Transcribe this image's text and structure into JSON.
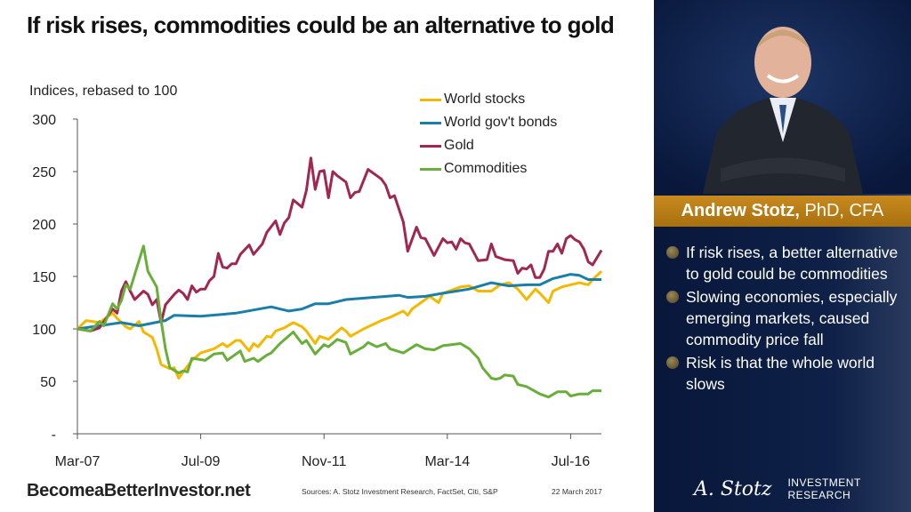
{
  "title": "If risk rises, commodities could be an alternative to gold",
  "footer": {
    "site": "BecomeaBetterInvestor.net",
    "sources": "Sources: A. Stotz Investment Research, FactSet, Citi, S&P",
    "date": "22 March 2017",
    "logo_signature": "A. Stotz",
    "logo_line1": "INVESTMENT",
    "logo_line2": "RESEARCH"
  },
  "panel": {
    "name": "Andrew Stotz,",
    "credentials": " PhD, CFA",
    "bullets": [
      "If risk rises, a better alternative to gold could be commodities",
      "Slowing economies, especially emerging markets, caused commodity price fall",
      "Risk is that the whole world slows"
    ],
    "banner_color": "#c08419"
  },
  "chart_data": {
    "type": "line",
    "title": "If risk rises, commodities could be an alternative to gold",
    "ylabel": "Indices, rebased to 100",
    "xlabel": "",
    "ylim": [
      0,
      300
    ],
    "yticks": [
      0,
      50,
      100,
      150,
      200,
      250,
      300
    ],
    "ytick_labels": [
      "-",
      "50",
      "100",
      "150",
      "200",
      "250",
      "300"
    ],
    "xlim": [
      "2007-03",
      "2017-02"
    ],
    "xticks": [
      "2007-03",
      "2009-07",
      "2011-11",
      "2014-03",
      "2016-07"
    ],
    "xtick_labels": [
      "Mar-07",
      "Jul-09",
      "Nov-11",
      "Mar-14",
      "Jul-16"
    ],
    "grid": false,
    "legend": "top-right",
    "series": [
      {
        "name": "World stocks",
        "color": "#f5b800",
        "points": [
          [
            "2007-03",
            100
          ],
          [
            "2007-05",
            108
          ],
          [
            "2007-08",
            106
          ],
          [
            "2007-11",
            115
          ],
          [
            "2007-12",
            110
          ],
          [
            "2008-02",
            102
          ],
          [
            "2008-03",
            100
          ],
          [
            "2008-05",
            107
          ],
          [
            "2008-06",
            97
          ],
          [
            "2008-08",
            92
          ],
          [
            "2008-09",
            81
          ],
          [
            "2008-10",
            66
          ],
          [
            "2008-12",
            62
          ],
          [
            "2009-01",
            63
          ],
          [
            "2009-02",
            53
          ],
          [
            "2009-03",
            59
          ],
          [
            "2009-05",
            70
          ],
          [
            "2009-07",
            77
          ],
          [
            "2009-10",
            81
          ],
          [
            "2009-12",
            86
          ],
          [
            "2010-01",
            83
          ],
          [
            "2010-03",
            89
          ],
          [
            "2010-04",
            89
          ],
          [
            "2010-06",
            79
          ],
          [
            "2010-07",
            86
          ],
          [
            "2010-08",
            83
          ],
          [
            "2010-10",
            93
          ],
          [
            "2010-11",
            92
          ],
          [
            "2010-12",
            98
          ],
          [
            "2011-02",
            101
          ],
          [
            "2011-04",
            106
          ],
          [
            "2011-06",
            102
          ],
          [
            "2011-07",
            98
          ],
          [
            "2011-09",
            86
          ],
          [
            "2011-10",
            93
          ],
          [
            "2011-12",
            90
          ],
          [
            "2012-03",
            101
          ],
          [
            "2012-04",
            98
          ],
          [
            "2012-05",
            93
          ],
          [
            "2012-08",
            100
          ],
          [
            "2012-10",
            104
          ],
          [
            "2012-12",
            108
          ],
          [
            "2013-02",
            111
          ],
          [
            "2013-05",
            117
          ],
          [
            "2013-06",
            113
          ],
          [
            "2013-07",
            119
          ],
          [
            "2013-09",
            125
          ],
          [
            "2013-11",
            131
          ],
          [
            "2014-01",
            125
          ],
          [
            "2014-02",
            134
          ],
          [
            "2014-06",
            140
          ],
          [
            "2014-08",
            141
          ],
          [
            "2014-10",
            136
          ],
          [
            "2015-01",
            136
          ],
          [
            "2015-03",
            142
          ],
          [
            "2015-05",
            144
          ],
          [
            "2015-07",
            138
          ],
          [
            "2015-09",
            128
          ],
          [
            "2015-11",
            138
          ],
          [
            "2015-12",
            134
          ],
          [
            "2016-02",
            125
          ],
          [
            "2016-03",
            136
          ],
          [
            "2016-05",
            140
          ],
          [
            "2016-07",
            142
          ],
          [
            "2016-09",
            144
          ],
          [
            "2016-11",
            142
          ],
          [
            "2016-12",
            147
          ],
          [
            "2017-02",
            155
          ]
        ]
      },
      {
        "name": "World gov't bonds",
        "color": "#1a7fa8",
        "points": [
          [
            "2007-03",
            100
          ],
          [
            "2008-01",
            106
          ],
          [
            "2008-05",
            103
          ],
          [
            "2008-11",
            108
          ],
          [
            "2009-01",
            113
          ],
          [
            "2009-07",
            112
          ],
          [
            "2010-03",
            115
          ],
          [
            "2010-11",
            121
          ],
          [
            "2011-03",
            117
          ],
          [
            "2011-06",
            119
          ],
          [
            "2011-09",
            124
          ],
          [
            "2011-12",
            124
          ],
          [
            "2012-04",
            128
          ],
          [
            "2012-10",
            130
          ],
          [
            "2013-04",
            132
          ],
          [
            "2013-06",
            130
          ],
          [
            "2013-10",
            131
          ],
          [
            "2014-02",
            134
          ],
          [
            "2014-08",
            138
          ],
          [
            "2015-01",
            144
          ],
          [
            "2015-05",
            141
          ],
          [
            "2015-09",
            142
          ],
          [
            "2015-12",
            142
          ],
          [
            "2016-03",
            148
          ],
          [
            "2016-07",
            152
          ],
          [
            "2016-09",
            151
          ],
          [
            "2016-11",
            147
          ],
          [
            "2017-02",
            147
          ]
        ]
      },
      {
        "name": "Gold",
        "color": "#a0284e",
        "points": [
          [
            "2007-03",
            100
          ],
          [
            "2007-06",
            98
          ],
          [
            "2007-08",
            101
          ],
          [
            "2007-11",
            119
          ],
          [
            "2007-12",
            115
          ],
          [
            "2008-01",
            136
          ],
          [
            "2008-02",
            145
          ],
          [
            "2008-03",
            136
          ],
          [
            "2008-04",
            128
          ],
          [
            "2008-06",
            136
          ],
          [
            "2008-07",
            133
          ],
          [
            "2008-08",
            123
          ],
          [
            "2008-09",
            128
          ],
          [
            "2008-10",
            106
          ],
          [
            "2008-11",
            123
          ],
          [
            "2009-01",
            133
          ],
          [
            "2009-02",
            137
          ],
          [
            "2009-03",
            134
          ],
          [
            "2009-04",
            128
          ],
          [
            "2009-05",
            141
          ],
          [
            "2009-06",
            135
          ],
          [
            "2009-07",
            138
          ],
          [
            "2009-08",
            138
          ],
          [
            "2009-09",
            146
          ],
          [
            "2009-10",
            150
          ],
          [
            "2009-11",
            172
          ],
          [
            "2009-12",
            159
          ],
          [
            "2010-01",
            158
          ],
          [
            "2010-02",
            162
          ],
          [
            "2010-03",
            162
          ],
          [
            "2010-04",
            171
          ],
          [
            "2010-06",
            180
          ],
          [
            "2010-07",
            171
          ],
          [
            "2010-09",
            181
          ],
          [
            "2010-10",
            192
          ],
          [
            "2010-12",
            203
          ],
          [
            "2011-01",
            190
          ],
          [
            "2011-02",
            201
          ],
          [
            "2011-03",
            206
          ],
          [
            "2011-04",
            223
          ],
          [
            "2011-06",
            216
          ],
          [
            "2011-07",
            232
          ],
          [
            "2011-08",
            263
          ],
          [
            "2011-09",
            233
          ],
          [
            "2011-10",
            250
          ],
          [
            "2011-11",
            251
          ],
          [
            "2011-12",
            225
          ],
          [
            "2012-01",
            250
          ],
          [
            "2012-02",
            246
          ],
          [
            "2012-04",
            240
          ],
          [
            "2012-05",
            225
          ],
          [
            "2012-06",
            230
          ],
          [
            "2012-07",
            231
          ],
          [
            "2012-09",
            252
          ],
          [
            "2012-11",
            246
          ],
          [
            "2012-12",
            243
          ],
          [
            "2013-01",
            237
          ],
          [
            "2013-02",
            225
          ],
          [
            "2013-03",
            227
          ],
          [
            "2013-05",
            202
          ],
          [
            "2013-06",
            174
          ],
          [
            "2013-08",
            197
          ],
          [
            "2013-09",
            187
          ],
          [
            "2013-10",
            186
          ],
          [
            "2013-12",
            170
          ],
          [
            "2014-02",
            186
          ],
          [
            "2014-03",
            182
          ],
          [
            "2014-04",
            183
          ],
          [
            "2014-05",
            176
          ],
          [
            "2014-06",
            186
          ],
          [
            "2014-07",
            182
          ],
          [
            "2014-08",
            181
          ],
          [
            "2014-10",
            165
          ],
          [
            "2014-12",
            166
          ],
          [
            "2015-01",
            181
          ],
          [
            "2015-02",
            169
          ],
          [
            "2015-04",
            166
          ],
          [
            "2015-06",
            165
          ],
          [
            "2015-07",
            153
          ],
          [
            "2015-08",
            158
          ],
          [
            "2015-09",
            157
          ],
          [
            "2015-10",
            161
          ],
          [
            "2015-11",
            149
          ],
          [
            "2015-12",
            149
          ],
          [
            "2016-01",
            157
          ],
          [
            "2016-02",
            174
          ],
          [
            "2016-03",
            174
          ],
          [
            "2016-04",
            181
          ],
          [
            "2016-05",
            172
          ],
          [
            "2016-06",
            186
          ],
          [
            "2016-07",
            189
          ],
          [
            "2016-08",
            185
          ],
          [
            "2016-09",
            183
          ],
          [
            "2016-10",
            176
          ],
          [
            "2016-11",
            164
          ],
          [
            "2016-12",
            161
          ],
          [
            "2017-02",
            175
          ]
        ]
      },
      {
        "name": "Commodities",
        "color": "#6aae3a",
        "points": [
          [
            "2007-03",
            100
          ],
          [
            "2007-06",
            98
          ],
          [
            "2007-08",
            107
          ],
          [
            "2007-09",
            103
          ],
          [
            "2007-11",
            124
          ],
          [
            "2007-12",
            119
          ],
          [
            "2008-01",
            127
          ],
          [
            "2008-02",
            142
          ],
          [
            "2008-03",
            138
          ],
          [
            "2008-06",
            179
          ],
          [
            "2008-07",
            155
          ],
          [
            "2008-09",
            140
          ],
          [
            "2008-10",
            108
          ],
          [
            "2008-11",
            81
          ],
          [
            "2008-12",
            63
          ],
          [
            "2009-02",
            58
          ],
          [
            "2009-03",
            60
          ],
          [
            "2009-04",
            59
          ],
          [
            "2009-05",
            72
          ],
          [
            "2009-08",
            70
          ],
          [
            "2009-10",
            76
          ],
          [
            "2009-12",
            77
          ],
          [
            "2010-01",
            70
          ],
          [
            "2010-04",
            79
          ],
          [
            "2010-05",
            69
          ],
          [
            "2010-07",
            72
          ],
          [
            "2010-08",
            69
          ],
          [
            "2010-10",
            75
          ],
          [
            "2010-11",
            77
          ],
          [
            "2011-01",
            86
          ],
          [
            "2011-04",
            97
          ],
          [
            "2011-06",
            86
          ],
          [
            "2011-07",
            89
          ],
          [
            "2011-09",
            76
          ],
          [
            "2011-11",
            85
          ],
          [
            "2011-12",
            83
          ],
          [
            "2012-02",
            90
          ],
          [
            "2012-04",
            87
          ],
          [
            "2012-05",
            76
          ],
          [
            "2012-08",
            83
          ],
          [
            "2012-09",
            87
          ],
          [
            "2012-11",
            83
          ],
          [
            "2013-01",
            86
          ],
          [
            "2013-02",
            81
          ],
          [
            "2013-05",
            77
          ],
          [
            "2013-08",
            85
          ],
          [
            "2013-10",
            81
          ],
          [
            "2013-12",
            80
          ],
          [
            "2014-02",
            84
          ],
          [
            "2014-06",
            86
          ],
          [
            "2014-08",
            81
          ],
          [
            "2014-10",
            72
          ],
          [
            "2014-11",
            63
          ],
          [
            "2015-01",
            53
          ],
          [
            "2015-02",
            52
          ],
          [
            "2015-03",
            53
          ],
          [
            "2015-04",
            56
          ],
          [
            "2015-06",
            55
          ],
          [
            "2015-07",
            47
          ],
          [
            "2015-09",
            45
          ],
          [
            "2015-12",
            38
          ],
          [
            "2016-02",
            35
          ],
          [
            "2016-04",
            40
          ],
          [
            "2016-06",
            40
          ],
          [
            "2016-07",
            36
          ],
          [
            "2016-09",
            38
          ],
          [
            "2016-11",
            38
          ],
          [
            "2016-12",
            41
          ],
          [
            "2017-02",
            41
          ]
        ]
      }
    ]
  }
}
